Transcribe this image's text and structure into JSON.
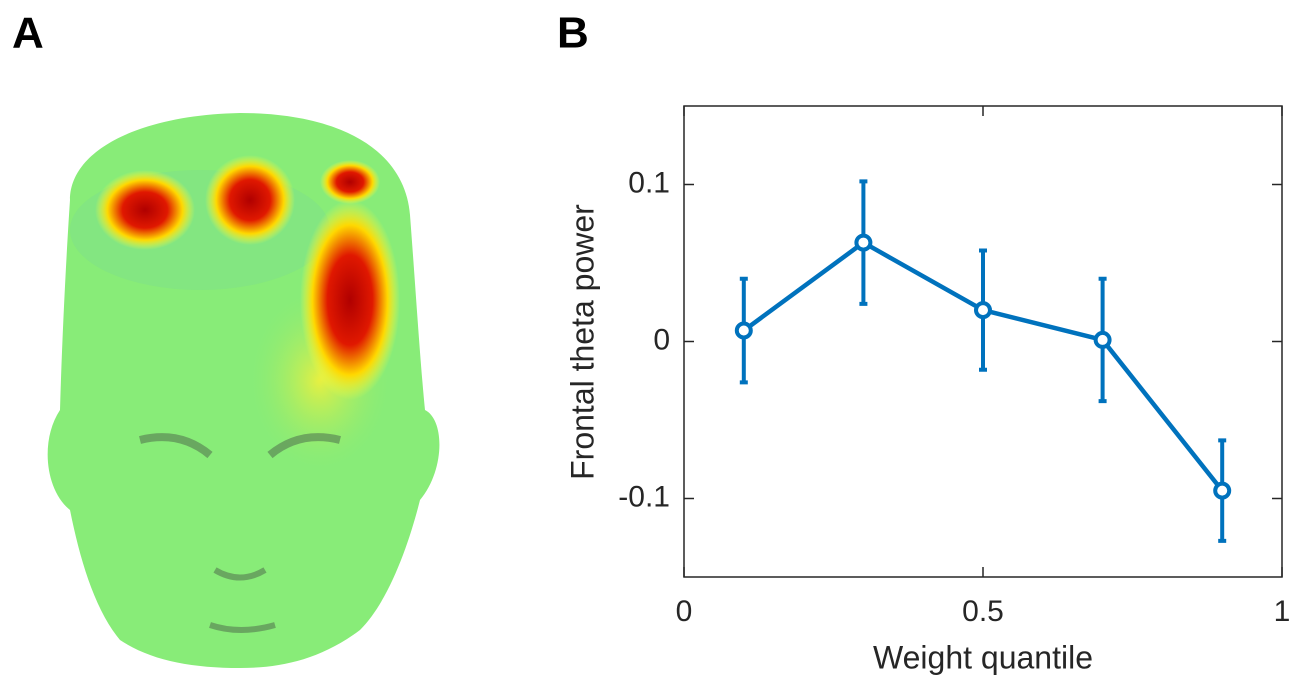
{
  "panels": {
    "a": "A",
    "b": "B"
  },
  "chart_data": {
    "type": "line",
    "x_label": "Weight quantile",
    "y_label": "Frontal theta power",
    "x": [
      0.1,
      0.3,
      0.5,
      0.7,
      0.9
    ],
    "values": [
      0.007,
      0.063,
      0.02,
      0.001,
      -0.095
    ],
    "errors": [
      0.033,
      0.039,
      0.038,
      0.039,
      0.032
    ],
    "color": "#0072bd",
    "xlim": [
      0,
      1
    ],
    "xticks": [
      0,
      0.5,
      1
    ],
    "ylim": [
      -0.15,
      0.15
    ],
    "yticks": [
      -0.1,
      0,
      0.1
    ]
  }
}
